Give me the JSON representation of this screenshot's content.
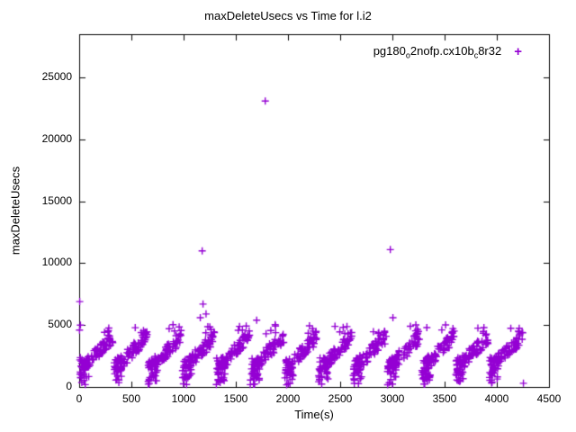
{
  "chart": {
    "title": "maxDeleteUsecs vs Time for l.i2",
    "xlabel": "Time(s)",
    "ylabel": "maxDeleteUsecs",
    "legend": {
      "parts": [
        {
          "text": "pg180"
        },
        {
          "text": "o",
          "sub": true
        },
        {
          "text": "2nofp.cx10b"
        },
        {
          "text": "c",
          "sub": true
        },
        {
          "text": "8r32"
        }
      ],
      "marker": "+"
    }
  },
  "chart_data": {
    "type": "scatter",
    "marker": "plus",
    "color": "#9400d3",
    "title": "maxDeleteUsecs vs Time for l.i2",
    "xlabel": "Time(s)",
    "ylabel": "maxDeleteUsecs",
    "xlim": [
      0,
      4500
    ],
    "ylim": [
      0,
      28500
    ],
    "xticks": [
      0,
      500,
      1000,
      1500,
      2000,
      2500,
      3000,
      3500,
      4000,
      4500
    ],
    "yticks": [
      0,
      5000,
      10000,
      15000,
      20000,
      25000
    ],
    "grid": false,
    "legend_position": "top-right-inside",
    "pattern": {
      "description": "Thirteen repeating sawtooth bursts between x=0 and x=4250: each burst starts as a dense low cluster around 500-2400 usecs, ramps up to about 4000-4700 usecs over roughly 310 seconds, with occasional spikes above 5000 and a few stragglers near 200-650, then resets.",
      "cycle_starts": [
        0,
        327,
        654,
        981,
        1308,
        1635,
        1962,
        2289,
        2616,
        2943,
        3270,
        3597,
        3924
      ],
      "ramp": {
        "x_span": 310,
        "y_start": 1500,
        "y_end": 4100,
        "jitter": 1100,
        "points": 70
      },
      "low_cluster": {
        "x_span": 90,
        "y_min": 500,
        "y_max": 2400,
        "points": 26
      },
      "spikes": {
        "y_min": 4300,
        "y_max": 5100,
        "points": 4
      },
      "stragglers": {
        "y_min": 150,
        "y_max": 650,
        "points": 3
      }
    },
    "outliers": [
      {
        "x": 5,
        "y": 6900
      },
      {
        "x": 3,
        "y": 4600
      },
      {
        "x": 12,
        "y": 5000
      },
      {
        "x": 1160,
        "y": 5600
      },
      {
        "x": 1178,
        "y": 11000
      },
      {
        "x": 1186,
        "y": 6700
      },
      {
        "x": 1215,
        "y": 5900
      },
      {
        "x": 1700,
        "y": 5400
      },
      {
        "x": 1782,
        "y": 23100
      },
      {
        "x": 1790,
        "y": 4300
      },
      {
        "x": 2450,
        "y": 4900
      },
      {
        "x": 2980,
        "y": 11100
      },
      {
        "x": 3005,
        "y": 5600
      },
      {
        "x": 3330,
        "y": 4800
      },
      {
        "x": 4255,
        "y": 300
      }
    ]
  }
}
